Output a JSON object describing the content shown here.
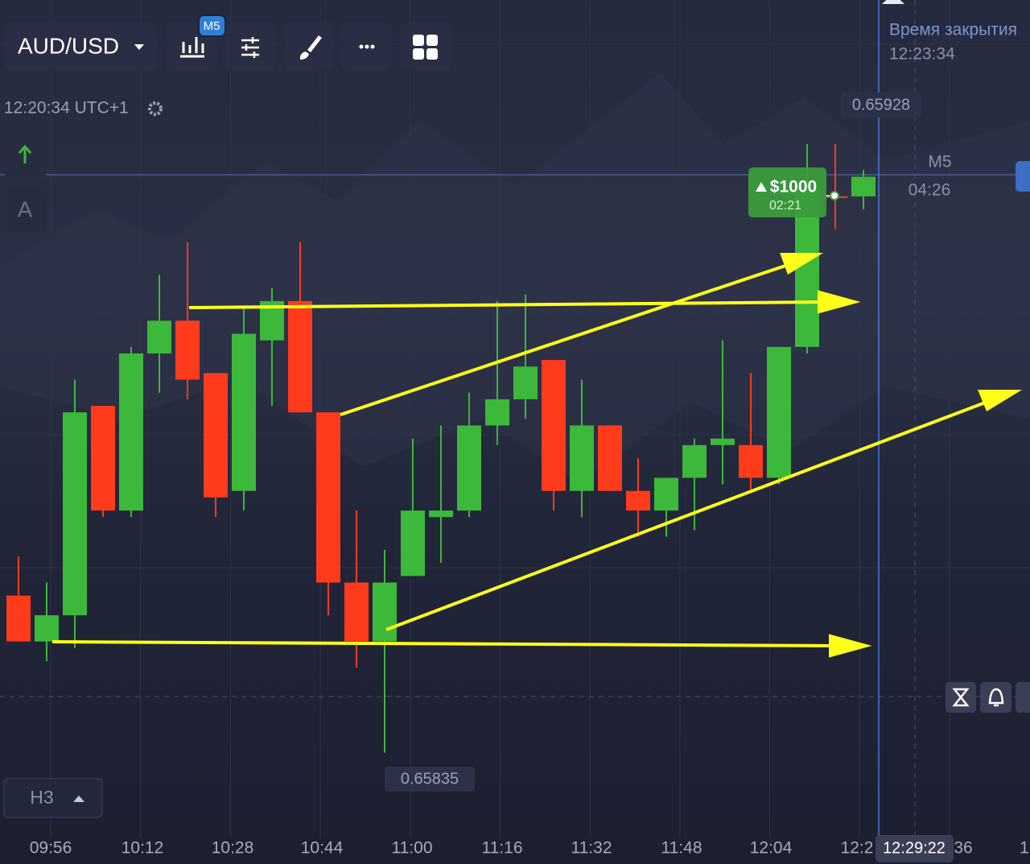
{
  "toolbar": {
    "pair": "AUD/USD",
    "timeframe_badge": "M5"
  },
  "clock": "12:20:34 UTC+1",
  "drawing_tool_label": "A",
  "closing": {
    "title": "Время закрытия",
    "time": "12:23:34"
  },
  "deal": {
    "amount": "$1000",
    "timer": "02:21"
  },
  "timeframe": {
    "label": "M5",
    "countdown": "04:26"
  },
  "layout_button": "H3",
  "chart_data": {
    "type": "candlestick",
    "ylim": [
      0.65818,
      0.6595
    ],
    "colors": {
      "up": "#3cb83a",
      "down": "#ff3b1c"
    },
    "high_label": "0.65928",
    "low_label": "0.65835",
    "xtick_labels": [
      "09:56",
      "10:12",
      "10:28",
      "10:44",
      "11:00",
      "11:16",
      "11:32",
      "11:48",
      "12:04",
      "12:2",
      "36",
      "1"
    ],
    "cursor_time": "12:29:22",
    "candles": [
      {
        "open": 0.65859,
        "high": 0.65865,
        "low": 0.65852,
        "close": 0.65852
      },
      {
        "open": 0.65852,
        "high": 0.65861,
        "low": 0.65849,
        "close": 0.65856
      },
      {
        "open": 0.65856,
        "high": 0.65892,
        "low": 0.65851,
        "close": 0.65887
      },
      {
        "open": 0.65888,
        "high": 0.65888,
        "low": 0.65871,
        "close": 0.65872
      },
      {
        "open": 0.65872,
        "high": 0.65897,
        "low": 0.65871,
        "close": 0.65896
      },
      {
        "open": 0.65896,
        "high": 0.65908,
        "low": 0.6589,
        "close": 0.65901
      },
      {
        "open": 0.65901,
        "high": 0.65913,
        "low": 0.65889,
        "close": 0.65892
      },
      {
        "open": 0.65893,
        "high": 0.65893,
        "low": 0.65871,
        "close": 0.65874
      },
      {
        "open": 0.65875,
        "high": 0.65903,
        "low": 0.65872,
        "close": 0.65899
      },
      {
        "open": 0.65898,
        "high": 0.65906,
        "low": 0.65888,
        "close": 0.65904
      },
      {
        "open": 0.65904,
        "high": 0.65913,
        "low": 0.65887,
        "close": 0.65887
      },
      {
        "open": 0.65887,
        "high": 0.65887,
        "low": 0.65856,
        "close": 0.65861
      },
      {
        "open": 0.65861,
        "high": 0.65872,
        "low": 0.65848,
        "close": 0.65852
      },
      {
        "open": 0.65852,
        "high": 0.65866,
        "low": 0.65835,
        "close": 0.65861
      },
      {
        "open": 0.65862,
        "high": 0.65883,
        "low": 0.65862,
        "close": 0.65872
      },
      {
        "open": 0.65871,
        "high": 0.65885,
        "low": 0.65864,
        "close": 0.65872
      },
      {
        "open": 0.65872,
        "high": 0.6589,
        "low": 0.65871,
        "close": 0.65885
      },
      {
        "open": 0.65885,
        "high": 0.65904,
        "low": 0.65882,
        "close": 0.65889
      },
      {
        "open": 0.65889,
        "high": 0.65905,
        "low": 0.65886,
        "close": 0.65894
      },
      {
        "open": 0.65895,
        "high": 0.65895,
        "low": 0.65872,
        "close": 0.65875
      },
      {
        "open": 0.65875,
        "high": 0.65892,
        "low": 0.65871,
        "close": 0.65885
      },
      {
        "open": 0.65885,
        "high": 0.65885,
        "low": 0.65875,
        "close": 0.65875
      },
      {
        "open": 0.65875,
        "high": 0.6588,
        "low": 0.65868,
        "close": 0.65872
      },
      {
        "open": 0.65872,
        "high": 0.65877,
        "low": 0.65868,
        "close": 0.65877
      },
      {
        "open": 0.65877,
        "high": 0.65883,
        "low": 0.65869,
        "close": 0.65882
      },
      {
        "open": 0.65882,
        "high": 0.65898,
        "low": 0.65876,
        "close": 0.65883
      },
      {
        "open": 0.65882,
        "high": 0.65893,
        "low": 0.65875,
        "close": 0.65877
      },
      {
        "open": 0.65877,
        "high": 0.65897,
        "low": 0.65876,
        "close": 0.65897
      },
      {
        "open": 0.65897,
        "high": 0.65928,
        "low": 0.65896,
        "close": 0.65921
      },
      {
        "open": 0.6592,
        "high": 0.65928,
        "low": 0.65915,
        "close": 0.6592
      },
      {
        "open": 0.6592,
        "high": 0.65924,
        "low": 0.65918,
        "close": 0.65923
      }
    ]
  }
}
